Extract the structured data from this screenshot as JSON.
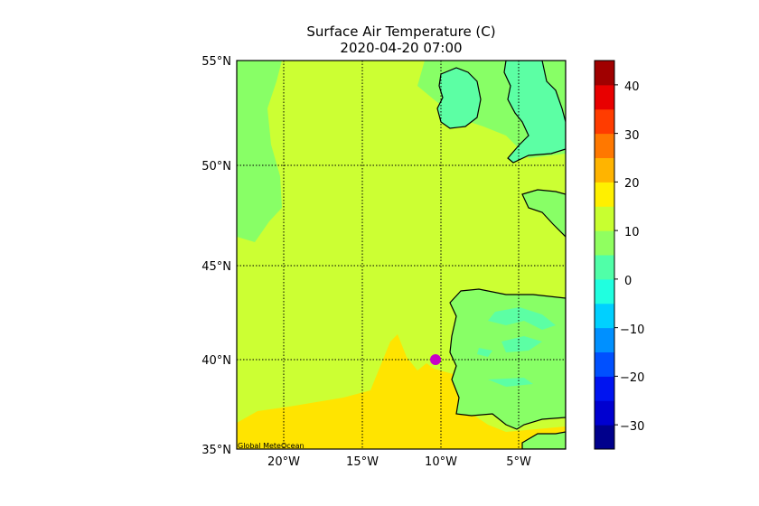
{
  "title": {
    "line1": "Surface Air Temperature (C)",
    "line2": "2020-04-20 07:00"
  },
  "map": {
    "lat_labels": [
      "55°N",
      "50°N",
      "45°N",
      "40°N",
      "35°N"
    ],
    "lon_labels": [
      "20°W",
      "15°W",
      "10°W",
      "5°W"
    ],
    "lon_range": [
      -23,
      -2
    ],
    "lat_range": [
      35,
      55
    ],
    "marker": {
      "lon": -10.3,
      "lat": 40.0,
      "color": "#c800c8"
    },
    "credit": "Global MeteOcean"
  },
  "colorbar": {
    "labels": [
      "40",
      "30",
      "20",
      "10",
      "0",
      "−10",
      "−20",
      "−30"
    ],
    "range": [
      -35,
      45
    ],
    "colors": [
      "#00008c",
      "#0000d0",
      "#0014f0",
      "#0050ff",
      "#0090ff",
      "#00d0ff",
      "#20ffe0",
      "#50ffa8",
      "#90ff60",
      "#c8ff30",
      "#fff000",
      "#ffb400",
      "#ff7800",
      "#ff3c00",
      "#e80000",
      "#a00000"
    ]
  },
  "colors": {
    "ocean_warm": "#ccff33",
    "ocean_cool": "#88ff66",
    "sea_hot": "#ffe400",
    "land_cool": "#5cffa4",
    "coast": "#000000"
  }
}
